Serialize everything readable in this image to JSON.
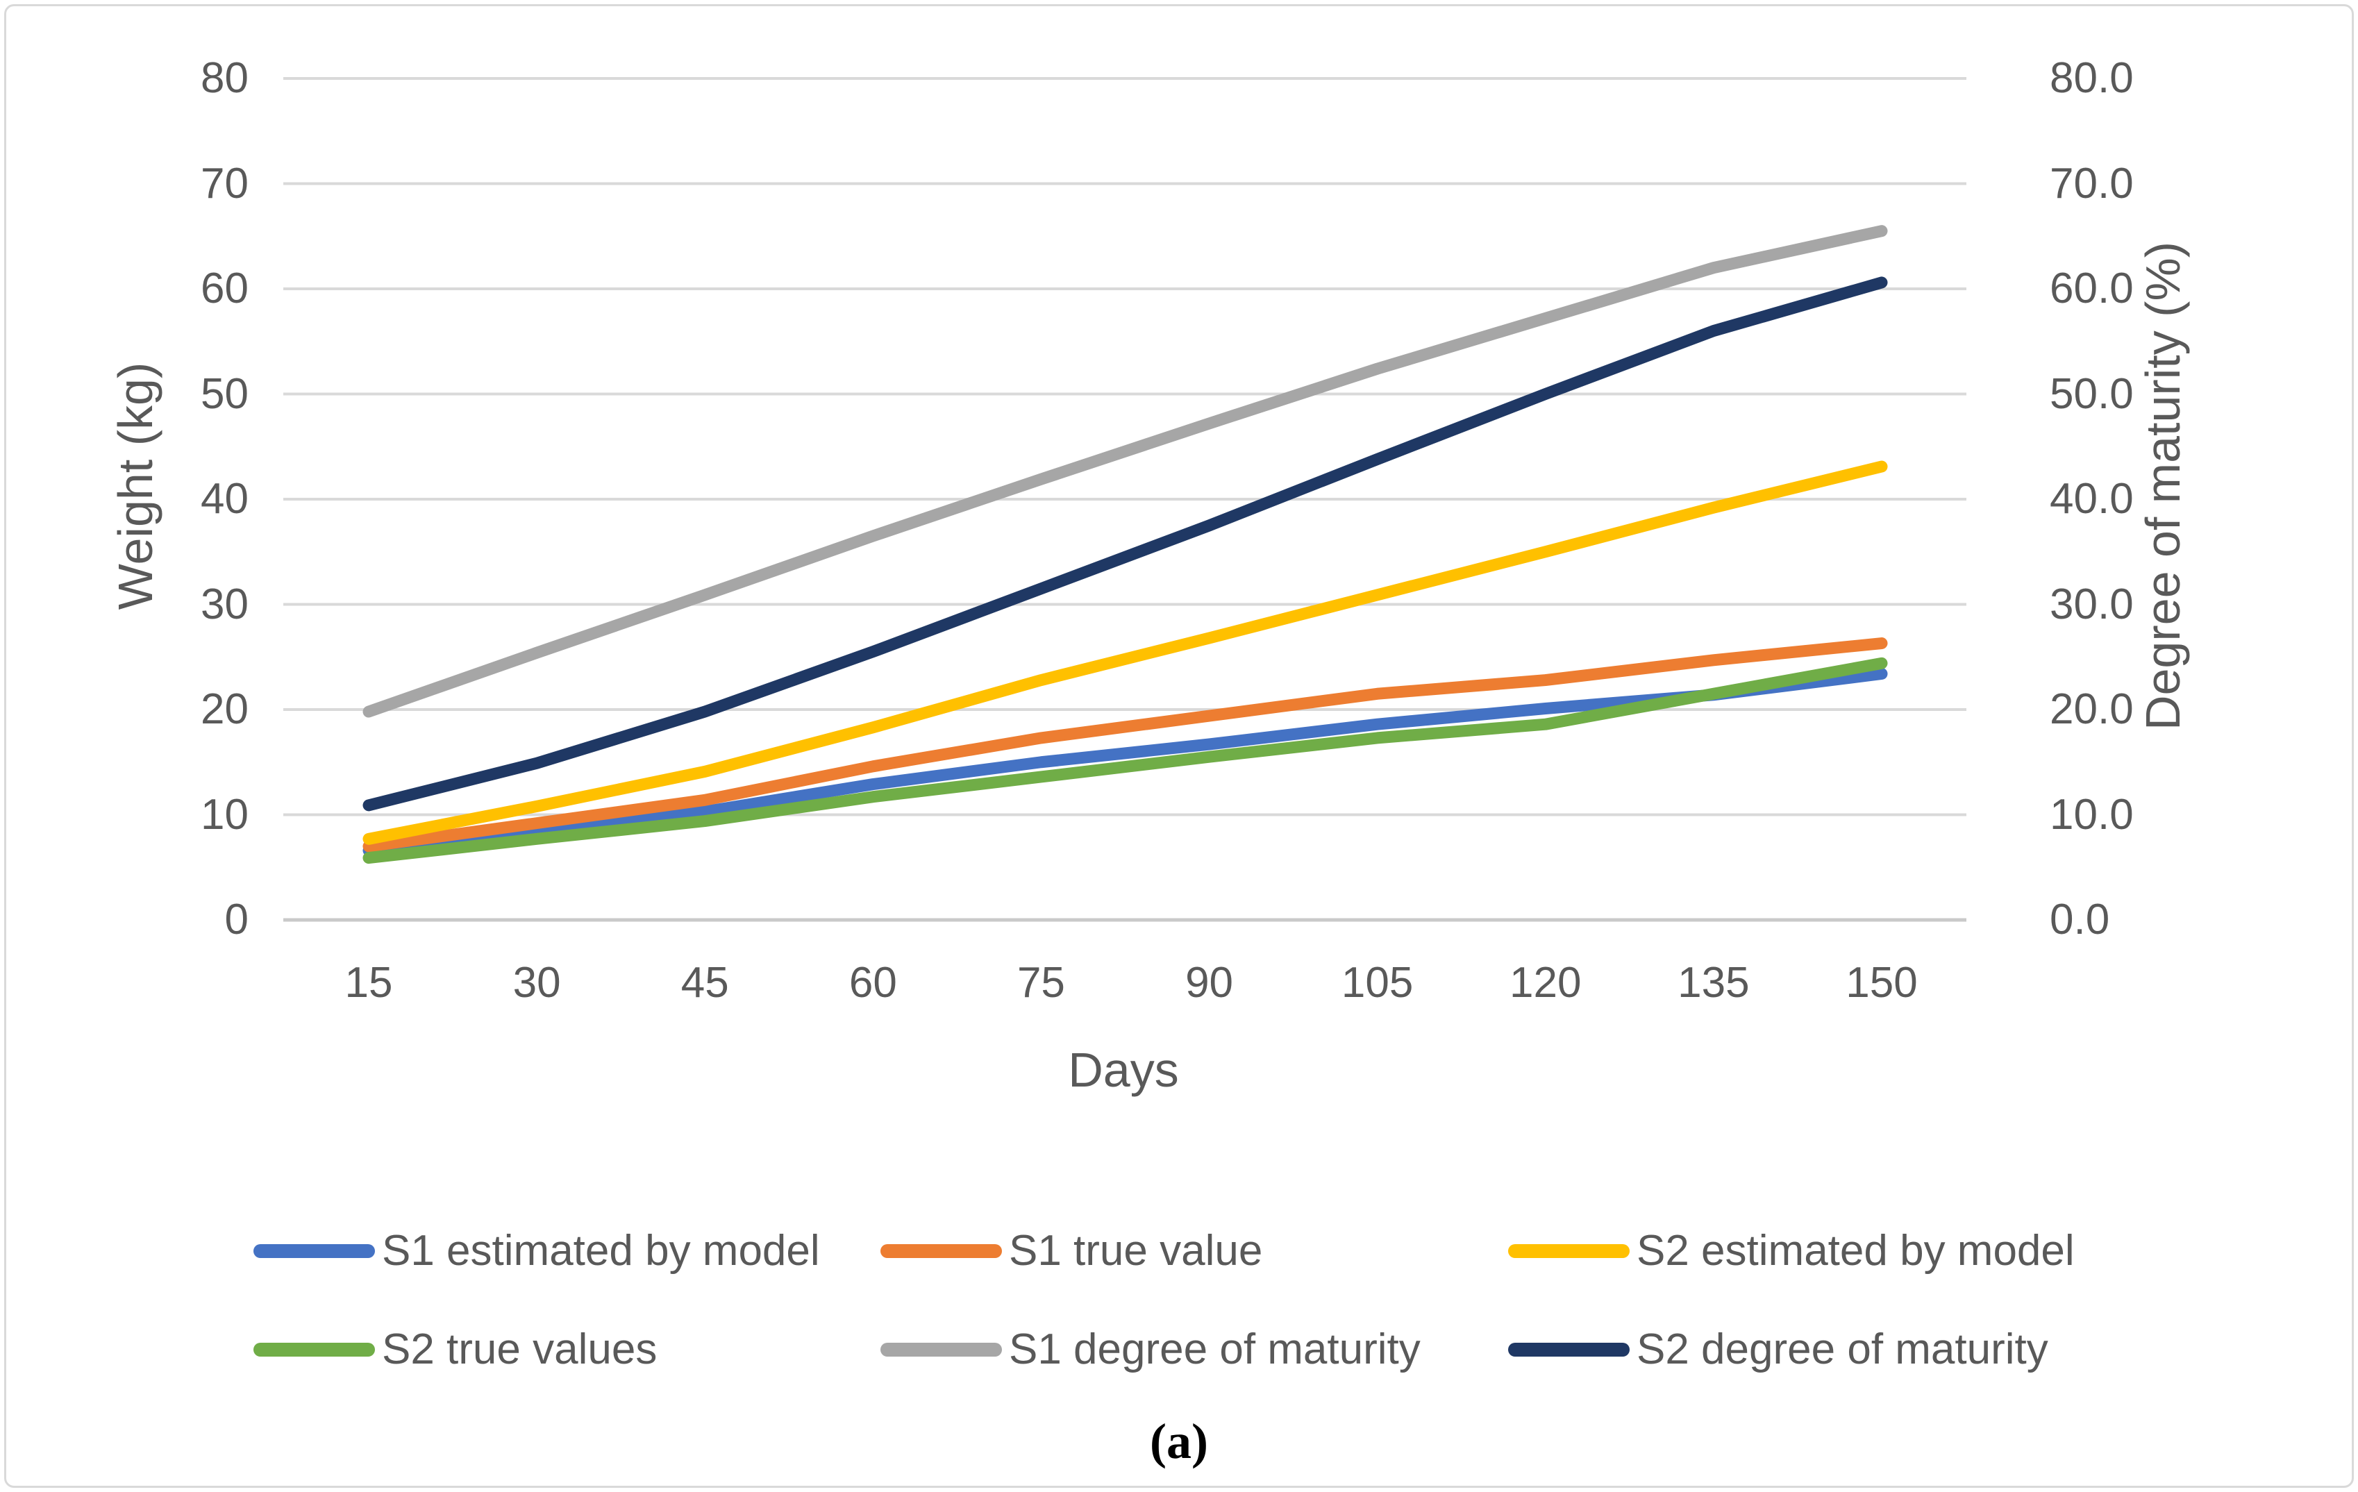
{
  "figure": {
    "caption": "(a)"
  },
  "chart_data": {
    "type": "line",
    "title": "",
    "x": [
      15,
      30,
      45,
      60,
      75,
      90,
      105,
      120,
      135,
      150
    ],
    "xlabel": "Days",
    "y_axis_left": {
      "title": "Weight (kg)",
      "ticks": [
        "80",
        "70",
        "60",
        "50",
        "40",
        "30",
        "20",
        "10",
        "0"
      ],
      "range": [
        0,
        80
      ]
    },
    "y_axis_right": {
      "title": "Degree of maturity (%)",
      "ticks": [
        "80.0",
        "70.0",
        "60.0",
        "50.0",
        "40.0",
        "30.0",
        "20.0",
        "10.0",
        "0.0"
      ],
      "range": [
        0,
        80
      ]
    },
    "grid": true,
    "gridline_color": "#d9d9d9",
    "axis_text_color": "#595959",
    "legend_position": "bottom",
    "series": [
      {
        "name": "S1 estimated by model",
        "color": "#4472C4",
        "axis": "left",
        "values": [
          6.6,
          8.5,
          10.3,
          12.9,
          15.0,
          16.7,
          18.6,
          20.1,
          21.4,
          23.4
        ]
      },
      {
        "name": "S1 true value",
        "color": "#ED7D31",
        "axis": "left",
        "values": [
          7.0,
          9.2,
          11.4,
          14.6,
          17.3,
          19.4,
          21.5,
          22.8,
          24.7,
          26.3
        ]
      },
      {
        "name": "S2 estimated by model",
        "color": "#FFC000",
        "axis": "left",
        "values": [
          7.7,
          10.8,
          14.1,
          18.3,
          22.8,
          26.8,
          30.9,
          35.0,
          39.2,
          43.1
        ]
      },
      {
        "name": "S2 true values",
        "color": "#70AD47",
        "axis": "left",
        "values": [
          5.9,
          7.7,
          9.4,
          11.7,
          13.6,
          15.5,
          17.3,
          18.6,
          21.5,
          24.4
        ]
      },
      {
        "name": "S1 degree of maturity",
        "color": "#A6A6A6",
        "axis": "right",
        "values": [
          19.8,
          25.4,
          30.9,
          36.5,
          41.9,
          47.2,
          52.4,
          57.2,
          62.0,
          65.5
        ]
      },
      {
        "name": "S2 degree of maturity",
        "color": "#1F3864",
        "axis": "right",
        "values": [
          10.9,
          14.9,
          19.8,
          25.5,
          31.5,
          37.5,
          43.8,
          50.0,
          56.0,
          60.6
        ]
      }
    ]
  }
}
